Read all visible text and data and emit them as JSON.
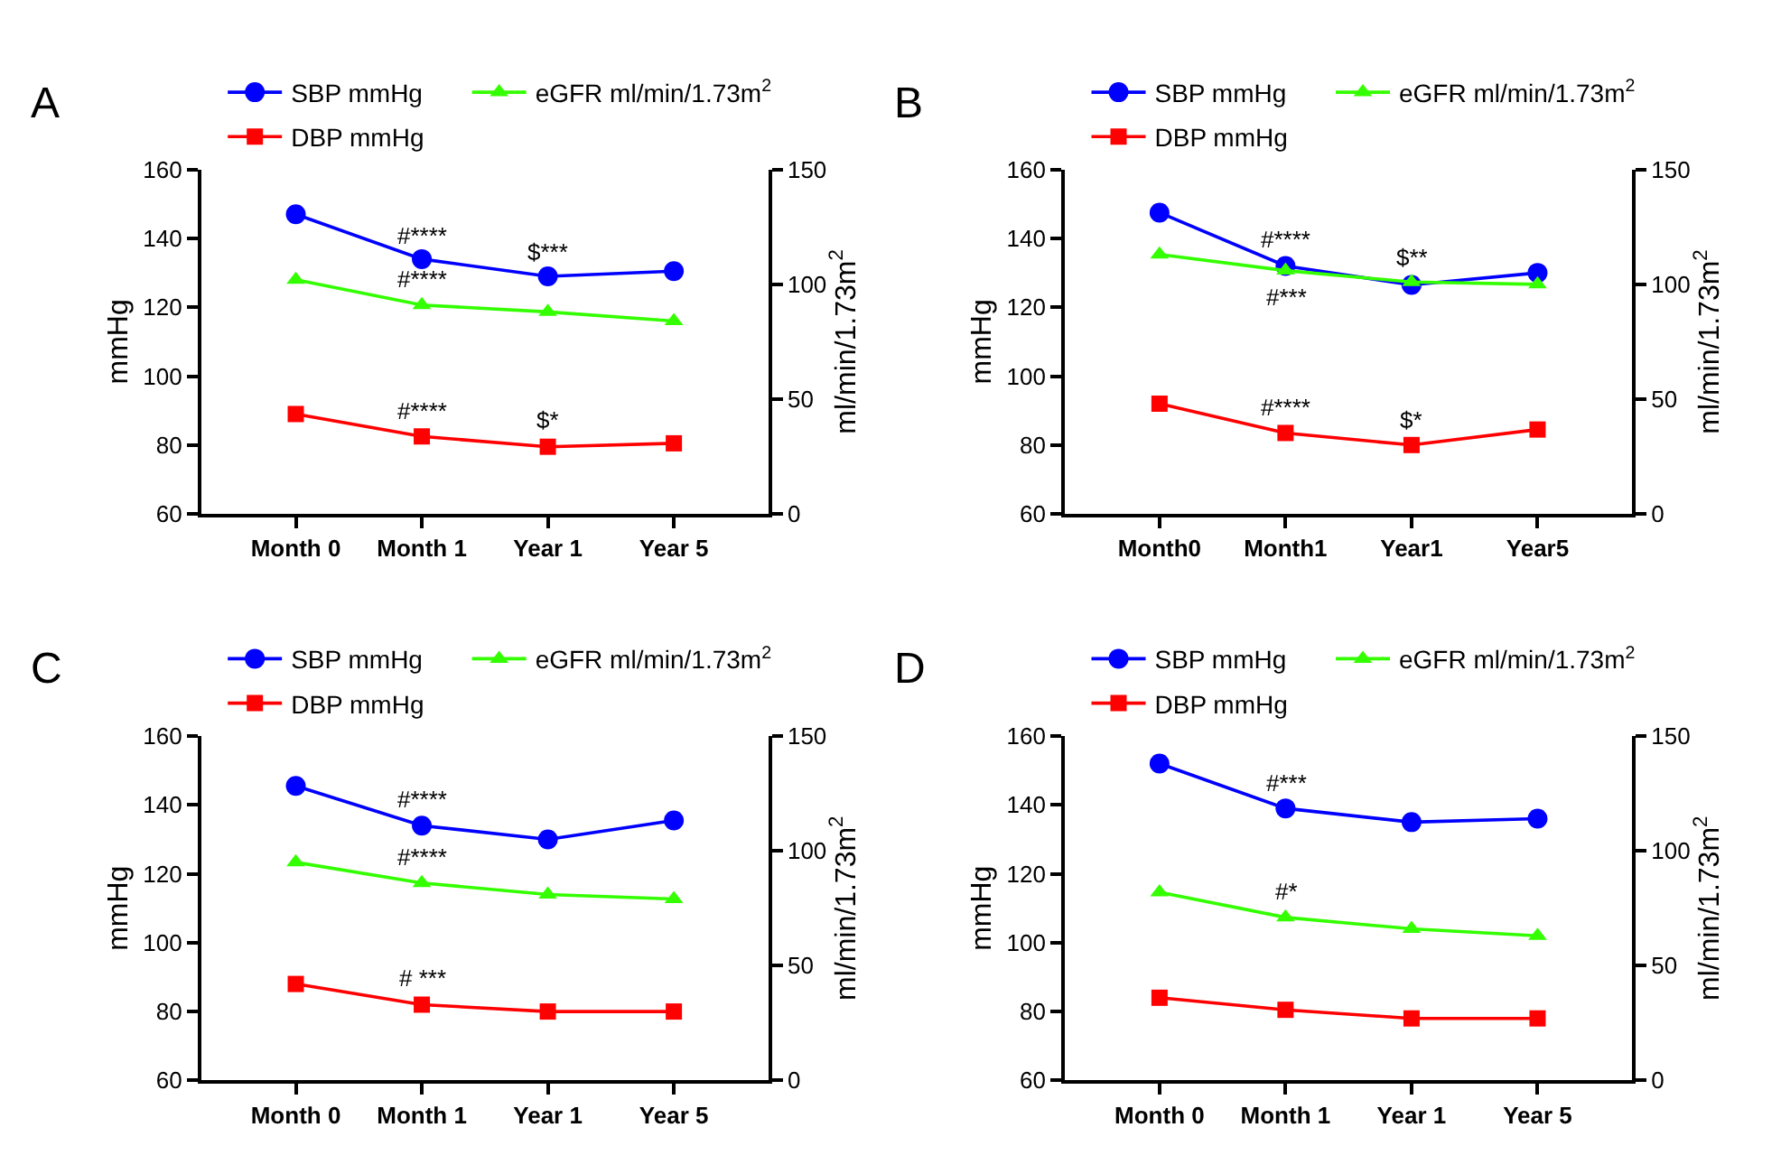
{
  "chart_data": [
    {
      "type": "line",
      "title": "A",
      "categories": [
        "Month 0",
        "Month 1",
        "Year 1",
        "Year 5"
      ],
      "ylabel": "mmHg",
      "y2label": "ml/min/1.73m$^{2}$",
      "ylim": [
        60,
        160
      ],
      "yticks": [
        60,
        80,
        100,
        120,
        140,
        160
      ],
      "y2lim": [
        0,
        150
      ],
      "y2ticks": [
        0,
        50,
        100,
        150
      ],
      "legend": "top",
      "series": [
        {
          "name": "SBP mmHg",
          "color": "#0000ff",
          "marker": "circle",
          "values": [
            147,
            134,
            129,
            130.5
          ]
        },
        {
          "name": "DBP mmHg",
          "color": "#ff0000",
          "marker": "square",
          "values": [
            89,
            82.5,
            79.5,
            80.5
          ]
        },
        {
          "name": "eGFR ml/min/1.73m$^{2}$",
          "color": "#33ff00",
          "marker": "triangle",
          "axis": "y2",
          "values": [
            102,
            91,
            88,
            84
          ]
        }
      ],
      "annotations": [
        {
          "text": "#****",
          "x": "Month 1",
          "y": 135
        },
        {
          "text": "$***",
          "x": "Year 1",
          "y": 130
        },
        {
          "text": "#****",
          "x": "Month 1",
          "y": 122
        },
        {
          "text": "#****",
          "x": "Month 1",
          "y": 84
        },
        {
          "text": "$*",
          "x": "Year 1",
          "y": 81
        }
      ]
    },
    {
      "type": "line",
      "title": "B",
      "categories": [
        "Month0",
        "Month1",
        "Year1",
        "Year5"
      ],
      "ylabel": "mmHg",
      "y2label": "ml/min/1.73m$^{2}$",
      "ylim": [
        60,
        160
      ],
      "yticks": [
        60,
        80,
        100,
        120,
        140,
        160
      ],
      "y2lim": [
        0,
        150
      ],
      "y2ticks": [
        0,
        50,
        100,
        150
      ],
      "legend": "top",
      "series": [
        {
          "name": "SBP mmHg",
          "color": "#0000ff",
          "marker": "circle",
          "values": [
            147.5,
            132,
            126.5,
            130
          ]
        },
        {
          "name": "DBP mmHg",
          "color": "#ff0000",
          "marker": "square",
          "values": [
            92,
            83.5,
            80,
            84.5
          ]
        },
        {
          "name": "eGFR ml/min/1.73m$^{2}$",
          "color": "#33ff00",
          "marker": "triangle",
          "axis": "y2",
          "values": [
            113,
            106,
            101,
            100
          ]
        }
      ],
      "annotations": [
        {
          "text": "#****",
          "x": "Month1",
          "y": 133.5
        },
        {
          "text": "$**",
          "x": "Year1",
          "y": 128.5
        },
        {
          "text": "#***",
          "x": "Month1",
          "y": 129
        },
        {
          "text": "#****",
          "x": "Month1",
          "y": 85
        },
        {
          "text": "$*",
          "x": "Year1",
          "y": 81.5
        }
      ]
    },
    {
      "type": "line",
      "title": "C",
      "categories": [
        "Month 0",
        "Month 1",
        "Year 1",
        "Year 5"
      ],
      "ylabel": "mmHg",
      "y2label": "ml/min/1.73m$^{2}$",
      "ylim": [
        60,
        160
      ],
      "yticks": [
        60,
        80,
        100,
        120,
        140,
        160
      ],
      "y2lim": [
        0,
        150
      ],
      "y2ticks": [
        0,
        50,
        100,
        150
      ],
      "legend": "top",
      "series": [
        {
          "name": "SBP mmHg",
          "color": "#0000ff",
          "marker": "circle",
          "values": [
            145.5,
            134,
            130,
            135.5
          ]
        },
        {
          "name": "DBP mmHg",
          "color": "#ff0000",
          "marker": "square",
          "values": [
            88,
            82,
            80,
            80
          ]
        },
        {
          "name": "eGFR ml/min/1.73m$^{2}$",
          "color": "#33ff00",
          "marker": "triangle",
          "axis": "y2",
          "values": [
            95,
            86,
            81,
            79
          ]
        }
      ],
      "annotations": [
        {
          "text": "#****",
          "x": "Month 1",
          "y": 135.5
        },
        {
          "text": "#****",
          "x": "Month 1",
          "y": 119
        },
        {
          "text": "# ***",
          "x": "Month 1",
          "y": 83.5
        }
      ]
    },
    {
      "type": "line",
      "title": "D",
      "categories": [
        "Month 0",
        "Month 1",
        "Year 1",
        "Year 5"
      ],
      "ylabel": "mmHg",
      "y2label": "ml/min/1.73m$^{2}$",
      "ylim": [
        60,
        160
      ],
      "yticks": [
        60,
        80,
        100,
        120,
        140,
        160
      ],
      "y2lim": [
        0,
        150
      ],
      "y2ticks": [
        0,
        50,
        100,
        150
      ],
      "legend": "top",
      "series": [
        {
          "name": "SBP mmHg",
          "color": "#0000ff",
          "marker": "circle",
          "values": [
            152,
            139,
            135,
            136
          ]
        },
        {
          "name": "DBP mmHg",
          "color": "#ff0000",
          "marker": "square",
          "values": [
            84,
            80.5,
            78,
            78
          ]
        },
        {
          "name": "eGFR ml/min/1.73m$^{2}$",
          "color": "#33ff00",
          "marker": "triangle",
          "axis": "y2",
          "values": [
            82,
            71,
            66,
            63
          ]
        }
      ],
      "annotations": [
        {
          "text": "#***",
          "x": "Month 1",
          "y": 140.5
        },
        {
          "text": "#*",
          "x": "Month 1",
          "y": 109
        }
      ]
    }
  ]
}
